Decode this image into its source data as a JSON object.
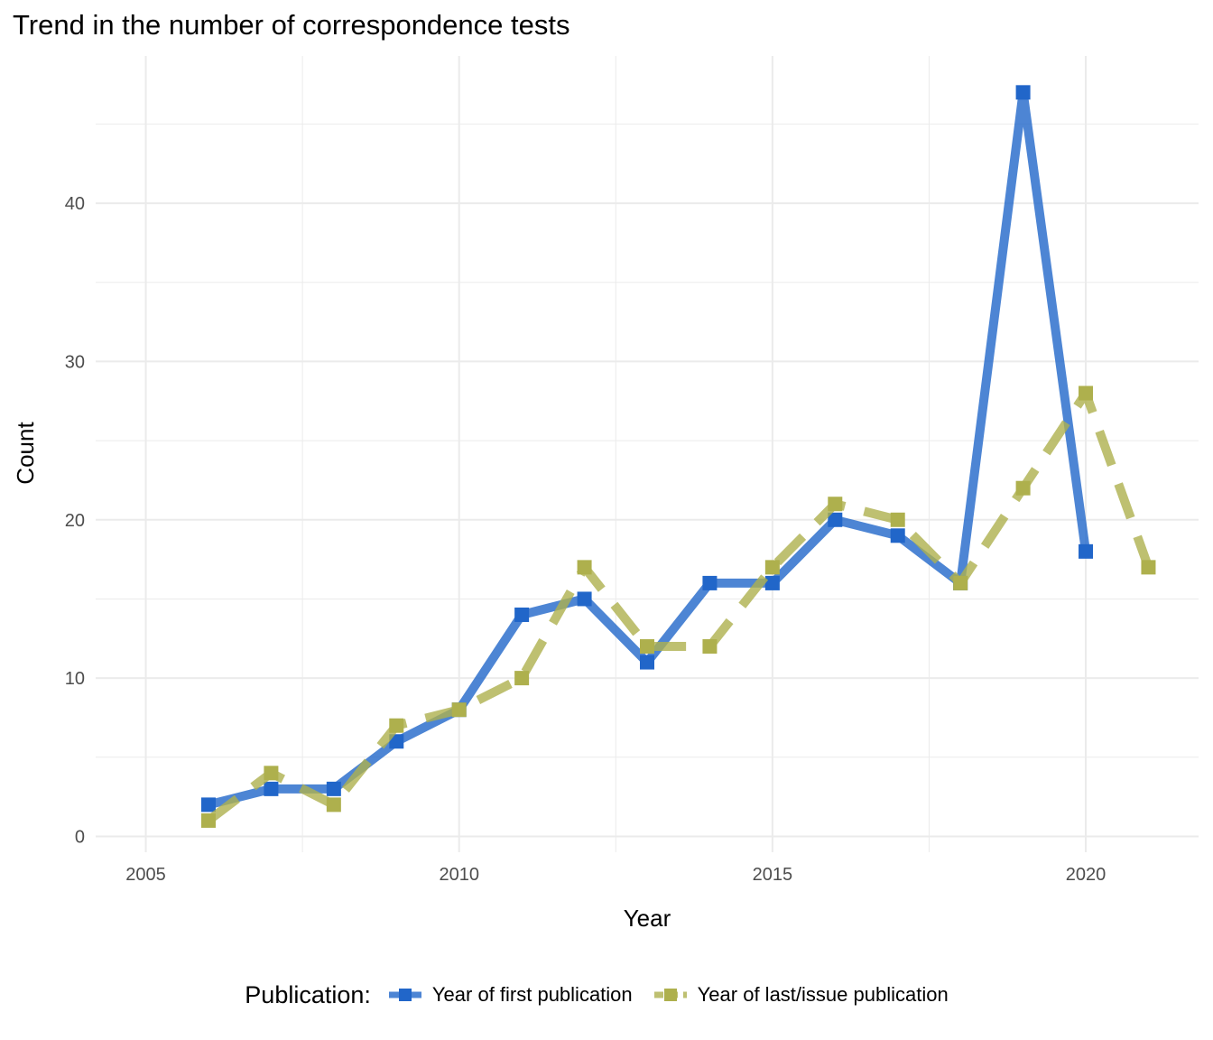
{
  "chart_data": {
    "type": "line",
    "title": "Trend in the number of correspondence tests",
    "xlabel": "Year",
    "ylabel": "Count",
    "xlim": [
      2004.2,
      2021.8
    ],
    "ylim": [
      -1.0,
      49.3
    ],
    "x_ticks": [
      2005,
      2010,
      2015,
      2020
    ],
    "y_ticks": [
      0,
      10,
      20,
      30,
      40
    ],
    "grid": true,
    "legend": {
      "title": "Publication:",
      "position": "bottom"
    },
    "series": [
      {
        "name": "Year of first publication",
        "color": "#2166c9",
        "style": "solid",
        "marker": "square",
        "x": [
          2006,
          2007,
          2008,
          2009,
          2010,
          2011,
          2012,
          2013,
          2014,
          2015,
          2016,
          2017,
          2018,
          2019,
          2020
        ],
        "values": [
          2,
          3,
          3,
          6,
          8,
          14,
          15,
          11,
          16,
          16,
          20,
          19,
          16,
          47,
          18
        ]
      },
      {
        "name": "Year of last/issue publication",
        "color": "#aeb04d",
        "style": "dashed",
        "marker": "square",
        "x": [
          2006,
          2007,
          2008,
          2009,
          2010,
          2011,
          2012,
          2013,
          2014,
          2015,
          2016,
          2017,
          2018,
          2019,
          2020,
          2021
        ],
        "values": [
          1,
          4,
          2,
          7,
          8,
          10,
          17,
          12,
          12,
          17,
          21,
          20,
          16,
          22,
          28,
          17
        ]
      }
    ]
  }
}
